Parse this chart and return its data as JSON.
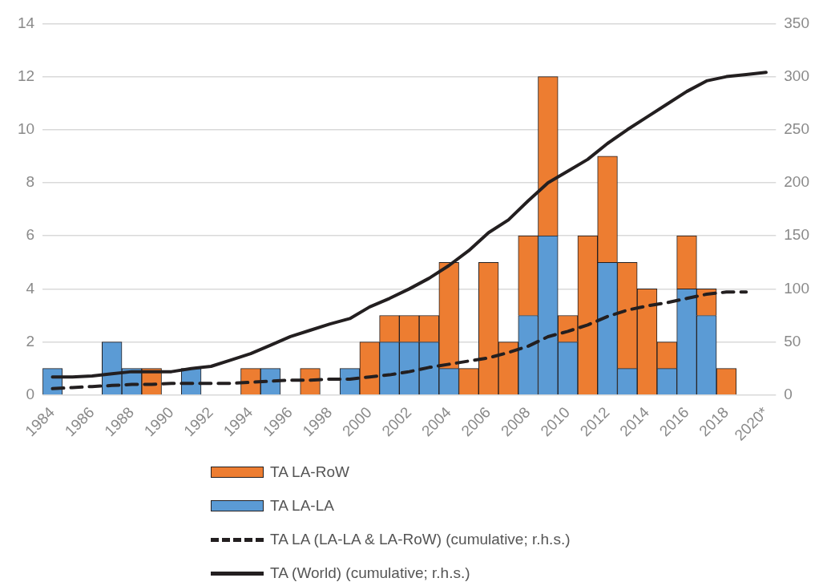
{
  "chart_data": {
    "type": "bar",
    "stacked": true,
    "categories": [
      "1984",
      null,
      "1986",
      null,
      "1988",
      null,
      "1990",
      null,
      "1992",
      null,
      "1994",
      null,
      "1996",
      null,
      "1998",
      null,
      "2000",
      null,
      "2002",
      null,
      "2004",
      null,
      "2006",
      null,
      "2008",
      null,
      "2010",
      null,
      "2012",
      null,
      "2014",
      null,
      "2016",
      null,
      "2018",
      null,
      "2020*"
    ],
    "series": [
      {
        "name": "TA LA-LA",
        "color": "#5b9bd5",
        "values": [
          1,
          0,
          0,
          2,
          1,
          0,
          0,
          1,
          0,
          0,
          0,
          1,
          0,
          0,
          0,
          1,
          0,
          2,
          2,
          2,
          1,
          0,
          0,
          0,
          3,
          6,
          2,
          0,
          5,
          1,
          0,
          1,
          4,
          3,
          0,
          0,
          0
        ]
      },
      {
        "name": "TA LA-RoW",
        "color": "#ed7d31",
        "values": [
          0,
          0,
          0,
          0,
          0,
          1,
          0,
          0,
          0,
          0,
          1,
          0,
          0,
          1,
          0,
          0,
          2,
          1,
          1,
          1,
          4,
          1,
          5,
          2,
          3,
          6,
          1,
          6,
          4,
          4,
          4,
          1,
          2,
          1,
          1,
          0,
          0
        ]
      },
      {
        "name": "TA LA (LA-LA & LA-RoW) (cumulative; r.h.s.)",
        "type": "line",
        "axis": "y2",
        "line_style": "dashed",
        "color": "#231f20",
        "values": [
          6,
          7,
          8,
          9,
          10,
          10,
          11,
          11,
          11,
          11,
          12,
          13,
          14,
          14,
          15,
          15,
          17,
          19,
          22,
          26,
          29,
          32,
          35,
          40,
          46,
          55,
          60,
          66,
          74,
          80,
          84,
          87,
          91,
          95,
          97,
          97,
          null
        ]
      },
      {
        "name": "TA (World) (cumulative; r.h.s.)",
        "type": "line",
        "axis": "y2",
        "line_style": "solid",
        "color": "#231f20",
        "values": [
          17,
          17,
          18,
          20,
          22,
          22,
          22,
          25,
          27,
          33,
          39,
          47,
          55,
          61,
          67,
          72,
          83,
          91,
          100,
          110,
          122,
          136,
          153,
          165,
          183,
          200,
          211,
          222,
          237,
          250,
          262,
          274,
          286,
          296,
          300,
          302,
          304
        ]
      }
    ],
    "ylim": [
      0,
      14
    ],
    "yticks": [
      0,
      2,
      4,
      6,
      8,
      10,
      12,
      14
    ],
    "y2lim": [
      0,
      350
    ],
    "y2ticks": [
      0,
      50,
      100,
      150,
      200,
      250,
      300,
      350
    ],
    "grid": "y",
    "legend": "bottom",
    "marker": "none"
  }
}
